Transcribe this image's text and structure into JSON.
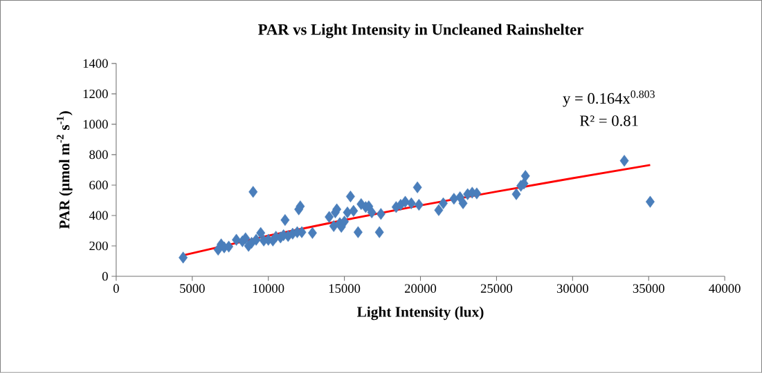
{
  "chart_data": {
    "type": "scatter",
    "title": "PAR vs Light Intensity in Uncleaned Rainshelter",
    "xlabel": "Light Intensity (lux)",
    "ylabel": "PAR (µmol m$^{-2}$ s$^{-1}$)",
    "xlim": [
      0,
      40000
    ],
    "xticks": [
      0,
      5000,
      10000,
      15000,
      20000,
      25000,
      30000,
      35000,
      40000
    ],
    "ylim": [
      0,
      1400
    ],
    "yticks": [
      0,
      200,
      400,
      600,
      800,
      1000,
      1200,
      1400
    ],
    "grid": false,
    "annotations": [
      "y = 0.164x$^{0.803}$",
      "R² = 0.81"
    ],
    "series": [
      {
        "color": "#4a7ebb",
        "marker": "diamond",
        "x": [
          4400,
          6700,
          6900,
          7100,
          7400,
          7900,
          8300,
          8500,
          8700,
          8900,
          9000,
          9200,
          9500,
          9700,
          10000,
          10300,
          10500,
          10800,
          11000,
          11100,
          11300,
          11600,
          11900,
          12000,
          12100,
          12200,
          12900,
          14000,
          14300,
          14400,
          14500,
          14700,
          14800,
          15000,
          15200,
          15400,
          15600,
          15900,
          16100,
          16400,
          16600,
          16800,
          17300,
          17400,
          18400,
          18700,
          19000,
          19400,
          19800,
          19900,
          21200,
          21500,
          22200,
          22600,
          22800,
          23100,
          23400,
          23700,
          26300,
          26600,
          26800,
          26900,
          33400,
          35100
        ],
        "values": [
          123,
          175,
          210,
          190,
          195,
          240,
          230,
          250,
          200,
          220,
          555,
          240,
          285,
          235,
          240,
          235,
          260,
          255,
          270,
          370,
          265,
          280,
          290,
          440,
          460,
          290,
          285,
          390,
          330,
          420,
          440,
          350,
          325,
          360,
          420,
          525,
          430,
          290,
          475,
          455,
          460,
          420,
          290,
          410,
          455,
          470,
          490,
          480,
          585,
          470,
          435,
          480,
          510,
          520,
          480,
          540,
          550,
          545,
          540,
          595,
          610,
          660,
          760,
          490
        ]
      },
      {
        "type": "line",
        "color": "#ff0000",
        "marker": "none",
        "x": [
          4400,
          10000,
          15000,
          20000,
          25000,
          30000,
          35100
        ],
        "values": [
          138,
          267,
          370,
          466,
          557,
          645,
          732
        ]
      }
    ]
  }
}
